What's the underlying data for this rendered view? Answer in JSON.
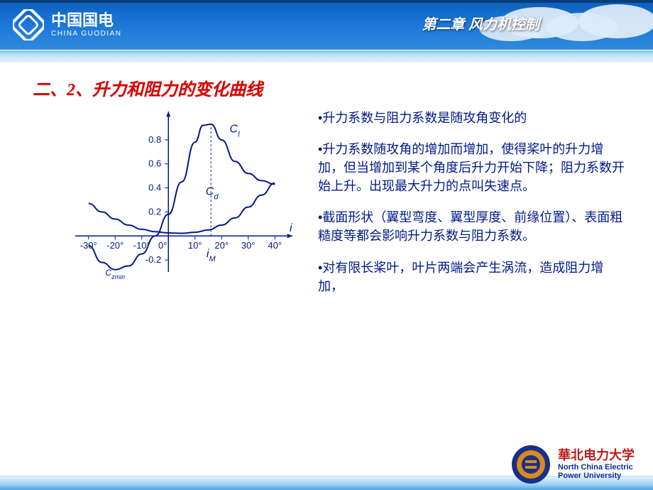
{
  "header": {
    "company_cn": "中国国电",
    "company_en": "CHINA GUODIAN",
    "chapter_title": "第二章  风力机控制",
    "bg_gradient": [
      "#0a5fb8",
      "#1a75d8",
      "#2e8bdb"
    ]
  },
  "section_title": "二、2、升力和阻力的变化曲线",
  "bullets": [
    "升力系数与阻力系数是随攻角变化的",
    "升力系数随攻角的增加而增加，使得桨叶的升力增加，但当增加到某个角度后升力开始下降；阻力系数开始上升。出现最大升力的点叫失速点。",
    "截面形状（翼型弯度、翼型厚度、前缘位置）、表面粗糙度等都会影响升力系数与阻力系数。",
    "对有限长桨叶，叶片两端会产生涡流，造成阻力增加，"
  ],
  "chart": {
    "type": "line",
    "stroke_color": "#001a8a",
    "stroke_width": 2,
    "text_color": "#001a8a",
    "axis_font_size": 13,
    "label_font_size": 16,
    "x_axis_label": "i",
    "x_ticks": [
      -30,
      -20,
      -10,
      0,
      10,
      20,
      30,
      40
    ],
    "x_tick_suffix": "°",
    "y_ticks_pos": [
      0.2,
      0.4,
      0.6,
      0.8
    ],
    "y_tick_neg": -0.2,
    "xlim": [
      -35,
      45
    ],
    "ylim": [
      -0.3,
      1.0
    ],
    "series": [
      {
        "name": "Cl",
        "label": "Cₗ",
        "label_style": "italic",
        "points": [
          [
            -30,
            -0.08
          ],
          [
            -25,
            -0.22
          ],
          [
            -20,
            -0.28
          ],
          [
            -15,
            -0.25
          ],
          [
            -10,
            -0.15
          ],
          [
            -5,
            0.0
          ],
          [
            0,
            0.18
          ],
          [
            5,
            0.45
          ],
          [
            10,
            0.78
          ],
          [
            13,
            0.92
          ],
          [
            16,
            0.93
          ],
          [
            20,
            0.8
          ],
          [
            25,
            0.62
          ],
          [
            30,
            0.52
          ],
          [
            35,
            0.46
          ],
          [
            40,
            0.43
          ]
        ]
      },
      {
        "name": "Cd",
        "label": "C_d",
        "label_style": "italic",
        "points": [
          [
            -30,
            0.27
          ],
          [
            -25,
            0.2
          ],
          [
            -20,
            0.14
          ],
          [
            -15,
            0.09
          ],
          [
            -10,
            0.055
          ],
          [
            -5,
            0.035
          ],
          [
            0,
            0.025
          ],
          [
            5,
            0.022
          ],
          [
            10,
            0.03
          ],
          [
            15,
            0.05
          ],
          [
            20,
            0.09
          ],
          [
            25,
            0.15
          ],
          [
            30,
            0.24
          ],
          [
            35,
            0.34
          ],
          [
            40,
            0.44
          ]
        ]
      }
    ],
    "stall_marker": {
      "x": 16,
      "label": "i_M",
      "dash": "3,3"
    },
    "Czmin_label": {
      "text": "Cₛₘᵢₙ",
      "at_x": -20
    }
  },
  "footer": {
    "uni_cn": "華北电力大学",
    "uni_en_line1": "North China Electric",
    "uni_en_line2": "Power University",
    "band_gradient": [
      "#e2f1fd",
      "#9dd0f6",
      "#4aa3e0"
    ]
  },
  "colors": {
    "title_red": "#d80000",
    "text_blue": "#001a8a",
    "uni_red": "#c21a1a",
    "uni_blue": "#0a2f8f"
  }
}
